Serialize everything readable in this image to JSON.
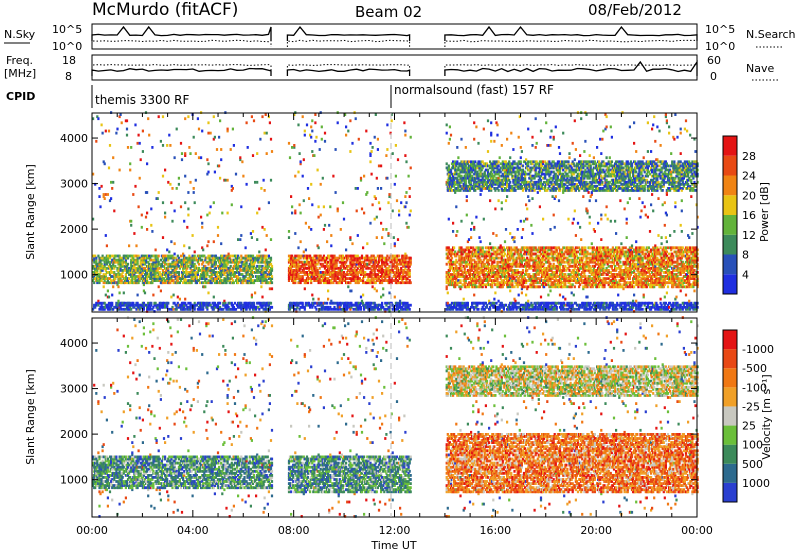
{
  "header": {
    "station": "McMurdo (fitACF)",
    "beam": "Beam 02",
    "date": "08/Feb/2012"
  },
  "nsky_panel": {
    "left_label": "N.Sky",
    "right_label": "N.Search",
    "left_ticks": [
      "10^5",
      "10^0"
    ],
    "right_ticks": [
      "10^5",
      "10^0"
    ]
  },
  "freq_panel": {
    "left_label_1": "Freq.",
    "left_label_2": "[MHz]",
    "right_label": "Nave",
    "left_ticks": [
      "18",
      "8"
    ],
    "right_ticks": [
      "60",
      "0"
    ]
  },
  "cpid": {
    "label": "CPID",
    "segments": [
      {
        "text": "themis 3300 RF",
        "start_hour": 0
      },
      {
        "text": "normalsound (fast) 157 RF",
        "start_hour": 12
      }
    ]
  },
  "colors": {
    "gridline": "#bbbbbb",
    "frame": "#000000"
  },
  "chart_data": [
    {
      "type": "heatmap",
      "title": "",
      "xlabel": "",
      "ylabel": "Slant Range [km]",
      "x_unit_hours": true,
      "xlim": [
        0,
        24
      ],
      "ylim": [
        180,
        4550
      ],
      "yticks": [
        1000,
        2000,
        3000,
        4000
      ],
      "colorbar": {
        "label": "Power [dB]",
        "ticks": [
          "4",
          "8",
          "12",
          "16",
          "20",
          "24",
          "28"
        ],
        "colors": [
          "#1f2fe0",
          "#2850b8",
          "#3c8a5a",
          "#62b33a",
          "#e8c414",
          "#f08414",
          "#e84a14",
          "#e41414"
        ]
      },
      "data_gaps_hours": [
        [
          7.1,
          7.75
        ],
        [
          12.6,
          14.0
        ]
      ],
      "echo_bands": [
        {
          "t0": 0.0,
          "t1": 7.1,
          "r0": 800,
          "r1": 1400,
          "level": 3
        },
        {
          "t0": 7.75,
          "t1": 12.6,
          "r0": 800,
          "r1": 1400,
          "level": 6
        },
        {
          "t0": 14.0,
          "t1": 24.0,
          "r0": 700,
          "r1": 1600,
          "level": 5
        },
        {
          "t0": 14.0,
          "t1": 24.0,
          "r0": 2800,
          "r1": 3500,
          "level": 2
        },
        {
          "t0": 0.0,
          "t1": 24.0,
          "r0": 200,
          "r1": 400,
          "level": 0
        }
      ]
    },
    {
      "type": "heatmap",
      "title": "",
      "xlabel": "Time UT",
      "ylabel": "Slant Range [km]",
      "xlim": [
        0,
        24
      ],
      "xticks": [
        "00:00",
        "04:00",
        "08:00",
        "12:00",
        "16:00",
        "20:00",
        "00:00"
      ],
      "ylim": [
        180,
        4550
      ],
      "yticks": [
        1000,
        2000,
        3000,
        4000
      ],
      "colorbar": {
        "label": "Velocity [m s⁻¹]",
        "ticks": [
          "1000",
          "500",
          "100",
          "25",
          "-25",
          "-100",
          "-500",
          "-1000"
        ],
        "colors": [
          "#2a3fd0",
          "#2d6a8e",
          "#3c8a5a",
          "#6bbf3a",
          "#c8c8c0",
          "#f0a028",
          "#f07814",
          "#e84814",
          "#e41414"
        ]
      },
      "data_gaps_hours": [
        [
          7.1,
          7.75
        ],
        [
          12.6,
          14.0
        ]
      ],
      "echo_bands": [
        {
          "t0": 0.0,
          "t1": 7.1,
          "r0": 800,
          "r1": 1500,
          "level": 2
        },
        {
          "t0": 7.75,
          "t1": 12.6,
          "r0": 700,
          "r1": 1500,
          "level": 2
        },
        {
          "t0": 14.0,
          "t1": 24.0,
          "r0": 700,
          "r1": 2000,
          "level": 6
        },
        {
          "t0": 14.0,
          "t1": 24.0,
          "r0": 2800,
          "r1": 3500,
          "level": 4
        }
      ]
    }
  ]
}
